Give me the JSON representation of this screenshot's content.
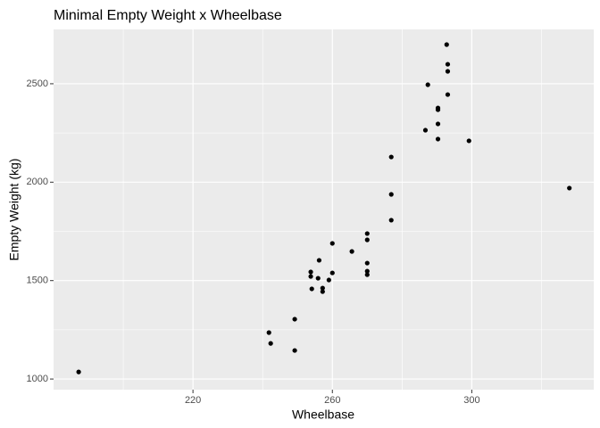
{
  "chart_data": {
    "type": "scatter",
    "title": "Minimal Empty Weight x Wheelbase",
    "x_label": "Wheelbase",
    "y_label": "Empty Weight (kg)",
    "x": [
      187.2,
      241.8,
      242.3,
      249.2,
      249.2,
      253.8,
      253.8,
      254.1,
      255.9,
      256.2,
      257.2,
      257.2,
      259.0,
      260.0,
      260.0,
      265.6,
      270.0,
      270.0,
      270.0,
      270.0,
      270.0,
      276.9,
      276.9,
      276.9,
      286.7,
      287.4,
      290.3,
      290.3,
      290.3,
      290.3,
      292.8,
      293.1,
      293.1,
      293.1,
      299.2,
      328.0
    ],
    "values": [
      1036,
      1236,
      1181,
      1304,
      1145,
      1544,
      1521,
      1458,
      1512,
      1603,
      1462,
      1444,
      1503,
      1539,
      1689,
      1648,
      1739,
      1707,
      1589,
      1548,
      1530,
      2128,
      1938,
      1807,
      2264,
      2495,
      2377,
      2368,
      2296,
      2219,
      2699,
      2599,
      2563,
      2445,
      2210,
      1970
    ],
    "color": "#000000",
    "xlim": [
      180,
      335
    ],
    "xticks": [
      220,
      260,
      300
    ],
    "x_minor_grid": [
      200,
      240,
      280,
      320
    ],
    "ylim": [
      946,
      2776
    ],
    "yticks": [
      1000,
      1500,
      2000,
      2500
    ],
    "y_minor_grid": [
      1250,
      1750,
      2250
    ],
    "grid": true
  }
}
